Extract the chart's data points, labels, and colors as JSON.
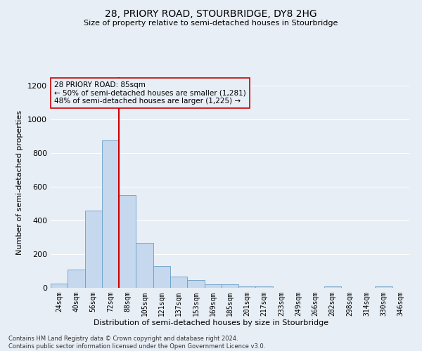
{
  "title1": "28, PRIORY ROAD, STOURBRIDGE, DY8 2HG",
  "title2": "Size of property relative to semi-detached houses in Stourbridge",
  "xlabel": "Distribution of semi-detached houses by size in Stourbridge",
  "ylabel": "Number of semi-detached properties",
  "footer1": "Contains HM Land Registry data © Crown copyright and database right 2024.",
  "footer2": "Contains public sector information licensed under the Open Government Licence v3.0.",
  "annotation_line1": "28 PRIORY ROAD: 85sqm",
  "annotation_line2": "← 50% of semi-detached houses are smaller (1,281)",
  "annotation_line3": "48% of semi-detached houses are larger (1,225) →",
  "bar_color": "#c5d8ee",
  "bar_edge_color": "#6a9fc8",
  "marker_color": "#cc0000",
  "categories": [
    "24sqm",
    "40sqm",
    "56sqm",
    "72sqm",
    "88sqm",
    "105sqm",
    "121sqm",
    "137sqm",
    "153sqm",
    "169sqm",
    "185sqm",
    "201sqm",
    "217sqm",
    "233sqm",
    "249sqm",
    "266sqm",
    "282sqm",
    "298sqm",
    "314sqm",
    "330sqm",
    "346sqm"
  ],
  "values": [
    25,
    108,
    460,
    875,
    550,
    265,
    130,
    65,
    45,
    20,
    20,
    10,
    10,
    0,
    0,
    0,
    8,
    0,
    0,
    8,
    0
  ],
  "ylim": [
    0,
    1250
  ],
  "yticks": [
    0,
    200,
    400,
    600,
    800,
    1000,
    1200
  ],
  "marker_bin_index": 4,
  "background_color": "#e8eef5",
  "grid_color": "#ffffff"
}
